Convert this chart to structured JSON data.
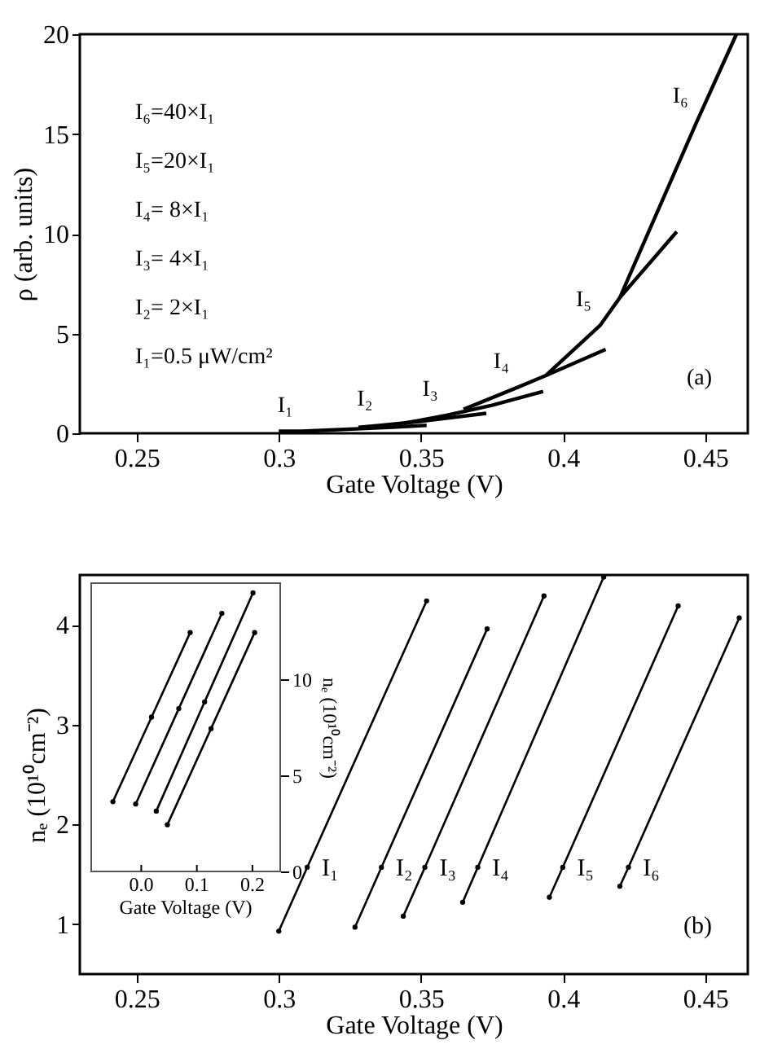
{
  "chart_data": [
    {
      "type": "line",
      "xlabel": "Gate Voltage  (V)",
      "ylabel": "ρ  (arb. units)",
      "xlim": [
        0.23,
        0.465
      ],
      "ylim": [
        0,
        20
      ],
      "xticks": [
        0.25,
        0.3,
        0.35,
        0.4,
        0.45
      ],
      "yticks": [
        0,
        5,
        10,
        15,
        20
      ],
      "grid": false,
      "marker": "none",
      "line_style": "solid",
      "series": [
        {
          "name": "I₁",
          "color": "#000000",
          "x": [
            0.3,
            0.308,
            0.34,
            0.352
          ],
          "values": [
            0.1,
            0.1,
            0.3,
            0.4
          ]
        },
        {
          "name": "I₂",
          "color": "#000000",
          "x": [
            0.328,
            0.336,
            0.35,
            0.373
          ],
          "values": [
            0.3,
            0.4,
            0.6,
            1.0
          ]
        },
        {
          "name": "I₃",
          "color": "#000000",
          "x": [
            0.344,
            0.359,
            0.375,
            0.393
          ],
          "values": [
            0.5,
            0.9,
            1.4,
            2.1
          ]
        },
        {
          "name": "I₄",
          "color": "#000000",
          "x": [
            0.365,
            0.384,
            0.394,
            0.415
          ],
          "values": [
            1.2,
            2.3,
            2.9,
            4.2
          ]
        },
        {
          "name": "I₅",
          "color": "#000000",
          "x": [
            0.394,
            0.413,
            0.42,
            0.44
          ],
          "values": [
            2.9,
            5.4,
            6.8,
            10.1
          ]
        },
        {
          "name": "I₆",
          "color": "#000000",
          "x": [
            0.42,
            0.447,
            0.461
          ],
          "values": [
            6.8,
            15.6,
            20
          ]
        }
      ],
      "annotations": [
        "I₆=40×I₁",
        "I₅=20×I₁",
        "I₄=  8×I₁",
        "I₃=  4×I₁",
        "I₂=  2×I₁",
        "I₁=0.5 μW/cm²",
        "(a)"
      ]
    },
    {
      "type": "line",
      "xlabel": "Gate Voltage  (V)",
      "ylabel": "nₑ (10¹⁰cm⁻²)",
      "xlim": [
        0.23,
        0.465
      ],
      "ylim": [
        0.5,
        4.5
      ],
      "xticks": [
        0.25,
        0.3,
        0.35,
        0.4,
        0.45
      ],
      "yticks": [
        1,
        2,
        3,
        4
      ],
      "grid": false,
      "marker": "circle",
      "line_style": "solid",
      "series": [
        {
          "name": "I₁",
          "color": "#000000",
          "x": [
            0.3,
            0.31,
            0.352
          ],
          "values": [
            0.93,
            1.57,
            4.24
          ]
        },
        {
          "name": "I₂",
          "color": "#000000",
          "x": [
            0.3268,
            0.3361,
            0.3733
          ],
          "values": [
            0.97,
            1.57,
            3.96
          ]
        },
        {
          "name": "I₃",
          "color": "#000000",
          "x": [
            0.3438,
            0.3514,
            0.3933
          ],
          "values": [
            1.08,
            1.57,
            4.29
          ]
        },
        {
          "name": "I₄",
          "color": "#000000",
          "x": [
            0.3647,
            0.37,
            0.4143
          ],
          "values": [
            1.22,
            1.57,
            4.48
          ]
        },
        {
          "name": "I₅",
          "color": "#000000",
          "x": [
            0.3952,
            0.3999,
            0.4405
          ],
          "values": [
            1.27,
            1.57,
            4.19
          ]
        },
        {
          "name": "I₆",
          "color": "#000000",
          "x": [
            0.42,
            0.423,
            0.462
          ],
          "values": [
            1.38,
            1.57,
            4.07
          ]
        }
      ],
      "annotations": [
        "(b)"
      ]
    },
    {
      "type": "line",
      "xlabel": "Gate Voltage  (V)",
      "ylabel": "nₑ (10¹⁰cm⁻²)",
      "xlim": [
        -0.09,
        0.25
      ],
      "ylim": [
        0,
        15
      ],
      "xticks": [
        {
          "value": 0,
          "label": "0.0"
        },
        0.1,
        0.2
      ],
      "yticks": [
        0,
        5,
        10
      ],
      "grid": false,
      "marker": "circle",
      "line_style": "solid",
      "series": [
        {
          "color": "#000000",
          "x": [
            -0.051,
            0.0185,
            0.088
          ],
          "values": [
            3.63,
            8.03,
            12.43
          ]
        },
        {
          "color": "#000000",
          "x": [
            -0.01,
            0.0675,
            0.145
          ],
          "values": [
            3.51,
            8.47,
            13.43
          ]
        },
        {
          "color": "#000000",
          "x": [
            0.027,
            0.114,
            0.201
          ],
          "values": [
            3.14,
            8.82,
            14.49
          ]
        },
        {
          "color": "#000000",
          "x": [
            0.047,
            0.1255,
            0.204
          ],
          "values": [
            2.43,
            7.43,
            12.43
          ]
        }
      ]
    }
  ]
}
